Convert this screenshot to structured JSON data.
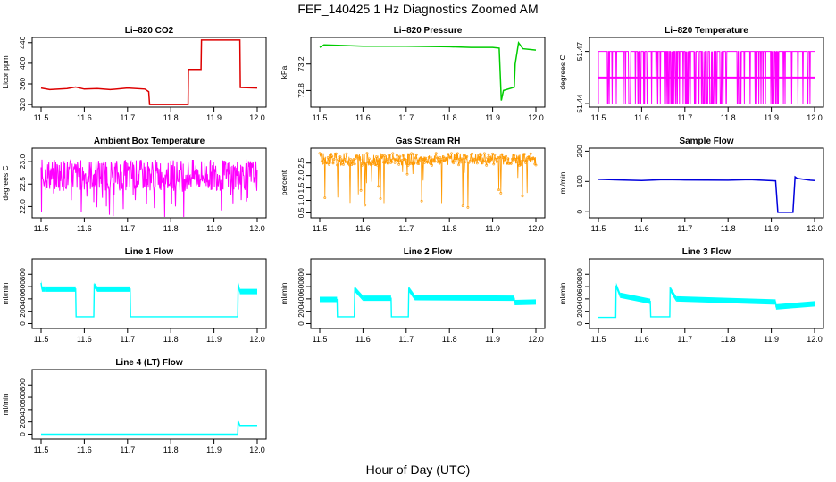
{
  "title": "FEF_140425  1 Hz Diagnostics Zoomed AM",
  "xlabel": "Hour of Day (UTC)",
  "colors": {
    "co2": "#dd0000",
    "pressure": "#00cc00",
    "temperature": "#ff00ff",
    "ambient": "#ff00ff",
    "rh": "#ff9900",
    "sample_flow": "#0000dd",
    "line_flow": "#00ffff"
  },
  "chart_data": [
    {
      "type": "line",
      "title": "Li–820 CO2",
      "ylabel": "Licor ppm",
      "xlim": [
        11.5,
        12.0
      ],
      "ylim": [
        315,
        450
      ],
      "x_ticks": [
        "11.5",
        "11.6",
        "11.7",
        "11.8",
        "11.9",
        "12.0"
      ],
      "y_ticks": [
        320,
        360,
        400,
        440
      ],
      "color": "co2",
      "series": [
        {
          "x": [
            11.5,
            11.52,
            11.56,
            11.58,
            11.6,
            11.63,
            11.66,
            11.7,
            11.74,
            11.749,
            11.751,
            11.84,
            11.841,
            11.87,
            11.871,
            11.96,
            11.961,
            12.0
          ],
          "y": [
            352,
            349,
            351,
            354,
            350,
            351,
            349,
            352,
            350,
            345,
            320,
            320,
            388,
            388,
            445,
            445,
            353,
            352
          ]
        }
      ]
    },
    {
      "type": "line",
      "title": "Li–820 Pressure",
      "ylabel": "kPa",
      "xlim": [
        11.5,
        12.0
      ],
      "ylim": [
        72.55,
        73.6
      ],
      "x_ticks": [
        "11.5",
        "11.6",
        "11.7",
        "11.8",
        "11.9",
        "12.0"
      ],
      "y_ticks": [
        "72.8",
        "73.2"
      ],
      "color": "pressure",
      "series": [
        {
          "x": [
            11.5,
            11.51,
            11.55,
            11.6,
            11.7,
            11.8,
            11.85,
            11.9,
            11.915,
            11.92,
            11.925,
            11.95,
            11.952,
            11.96,
            11.97,
            12.0
          ],
          "y": [
            73.45,
            73.49,
            73.48,
            73.47,
            73.47,
            73.46,
            73.45,
            73.45,
            73.44,
            72.65,
            72.8,
            72.85,
            73.2,
            73.52,
            73.43,
            73.41
          ]
        }
      ]
    },
    {
      "type": "line",
      "title": "Li–820 Temperature",
      "ylabel": "degrees C",
      "xlim": [
        11.5,
        12.0
      ],
      "ylim": [
        51.438,
        51.478
      ],
      "x_ticks": [
        "11.5",
        "11.6",
        "11.7",
        "11.8",
        "11.9",
        "12.0"
      ],
      "y_ticks": [
        "51.44",
        "51.47"
      ],
      "color": "temperature",
      "series": [
        {
          "x": [
            11.5,
            12.0
          ],
          "y": [
            51.44,
            51.47
          ]
        }
      ]
    },
    {
      "type": "line",
      "title": "Ambient Box Temperature",
      "ylabel": "degrees C",
      "xlim": [
        11.5,
        12.0
      ],
      "ylim": [
        21.75,
        23.3
      ],
      "x_ticks": [
        "11.5",
        "11.6",
        "11.7",
        "11.8",
        "11.9",
        "12.0"
      ],
      "y_ticks": [
        "22.0",
        "22.5",
        "23.0"
      ],
      "color": "ambient",
      "series": [
        {
          "x": [
            11.5,
            12.0
          ],
          "y": [
            22.7,
            22.7
          ]
        }
      ]
    },
    {
      "type": "scatter",
      "title": "Gas Stream RH",
      "ylabel": "percent",
      "xlim": [
        11.5,
        12.0
      ],
      "ylim": [
        0.3,
        3.1
      ],
      "x_ticks": [
        "11.5",
        "11.6",
        "11.7",
        "11.8",
        "11.9",
        "12.0"
      ],
      "y_ticks": [
        "0.5",
        "1.0",
        "1.5",
        "2.0",
        "2.5"
      ],
      "color": "rh",
      "series": [
        {
          "x": [
            11.5,
            12.0
          ],
          "y": [
            2.6,
            2.6
          ]
        }
      ]
    },
    {
      "type": "line",
      "title": "Sample Flow",
      "ylabel": "ml/min",
      "xlim": [
        11.5,
        12.0
      ],
      "ylim": [
        -20,
        210
      ],
      "x_ticks": [
        "11.5",
        "11.6",
        "11.7",
        "11.8",
        "11.9",
        "12.0"
      ],
      "y_ticks": [
        0,
        100,
        200
      ],
      "color": "sample_flow",
      "series": [
        {
          "x": [
            11.5,
            11.55,
            11.6,
            11.65,
            11.7,
            11.8,
            11.85,
            11.91,
            11.915,
            11.95,
            11.955,
            11.96,
            11.99,
            12.0
          ],
          "y": [
            107,
            105,
            103,
            106,
            105,
            104,
            106,
            102,
            -2,
            -2,
            115,
            110,
            104,
            103
          ]
        }
      ]
    },
    {
      "type": "line",
      "title": "Line 1 Flow",
      "ylabel": "ml/min",
      "xlim": [
        11.5,
        12.0
      ],
      "ylim": [
        -80,
        1050
      ],
      "x_ticks": [
        "11.5",
        "11.6",
        "11.7",
        "11.8",
        "11.9",
        "12.0"
      ],
      "y_ticks": [
        0,
        200,
        400,
        600,
        800
      ],
      "color": "line_flow",
      "series": [
        {
          "x": [
            11.5,
            11.502,
            11.51,
            11.58,
            11.581,
            11.622,
            11.623,
            11.63,
            11.706,
            11.707,
            11.955,
            11.956,
            11.96,
            12.0
          ],
          "y": [
            660,
            560,
            560,
            560,
            110,
            110,
            620,
            560,
            560,
            110,
            110,
            640,
            520,
            520
          ]
        }
      ]
    },
    {
      "type": "line",
      "title": "Line 2 Flow",
      "ylabel": "ml/min",
      "xlim": [
        11.5,
        12.0
      ],
      "ylim": [
        -80,
        1050
      ],
      "x_ticks": [
        "11.5",
        "11.6",
        "11.7",
        "11.8",
        "11.9",
        "12.0"
      ],
      "y_ticks": [
        0,
        200,
        400,
        600,
        800
      ],
      "color": "line_flow",
      "series": [
        {
          "x": [
            11.5,
            11.54,
            11.541,
            11.58,
            11.581,
            11.6,
            11.665,
            11.666,
            11.705,
            11.706,
            11.72,
            11.95,
            11.951,
            12.0
          ],
          "y": [
            390,
            390,
            110,
            110,
            560,
            410,
            410,
            110,
            110,
            560,
            420,
            410,
            340,
            350
          ]
        }
      ]
    },
    {
      "type": "line",
      "title": "Line 3 Flow",
      "ylabel": "ml/min",
      "xlim": [
        11.5,
        12.0
      ],
      "ylim": [
        -80,
        1050
      ],
      "x_ticks": [
        "11.5",
        "11.6",
        "11.7",
        "11.8",
        "11.9",
        "12.0"
      ],
      "y_ticks": [
        0,
        200,
        400,
        600,
        800
      ],
      "color": "line_flow",
      "series": [
        {
          "x": [
            11.5,
            11.54,
            11.541,
            11.55,
            11.62,
            11.621,
            11.665,
            11.666,
            11.68,
            11.91,
            11.911,
            12.0
          ],
          "y": [
            100,
            100,
            620,
            460,
            360,
            110,
            110,
            560,
            400,
            350,
            270,
            320
          ]
        }
      ]
    },
    {
      "type": "line",
      "title": "Line 4 (LT) Flow",
      "ylabel": "ml/min",
      "xlim": [
        11.5,
        12.0
      ],
      "ylim": [
        -80,
        1050
      ],
      "x_ticks": [
        "11.5",
        "11.6",
        "11.7",
        "11.8",
        "11.9",
        "12.0"
      ],
      "y_ticks": [
        0,
        200,
        400,
        600,
        800
      ],
      "color": "line_flow",
      "series": [
        {
          "x": [
            11.5,
            11.955,
            11.956,
            11.96,
            12.0
          ],
          "y": [
            0,
            0,
            210,
            140,
            140
          ]
        }
      ]
    }
  ]
}
